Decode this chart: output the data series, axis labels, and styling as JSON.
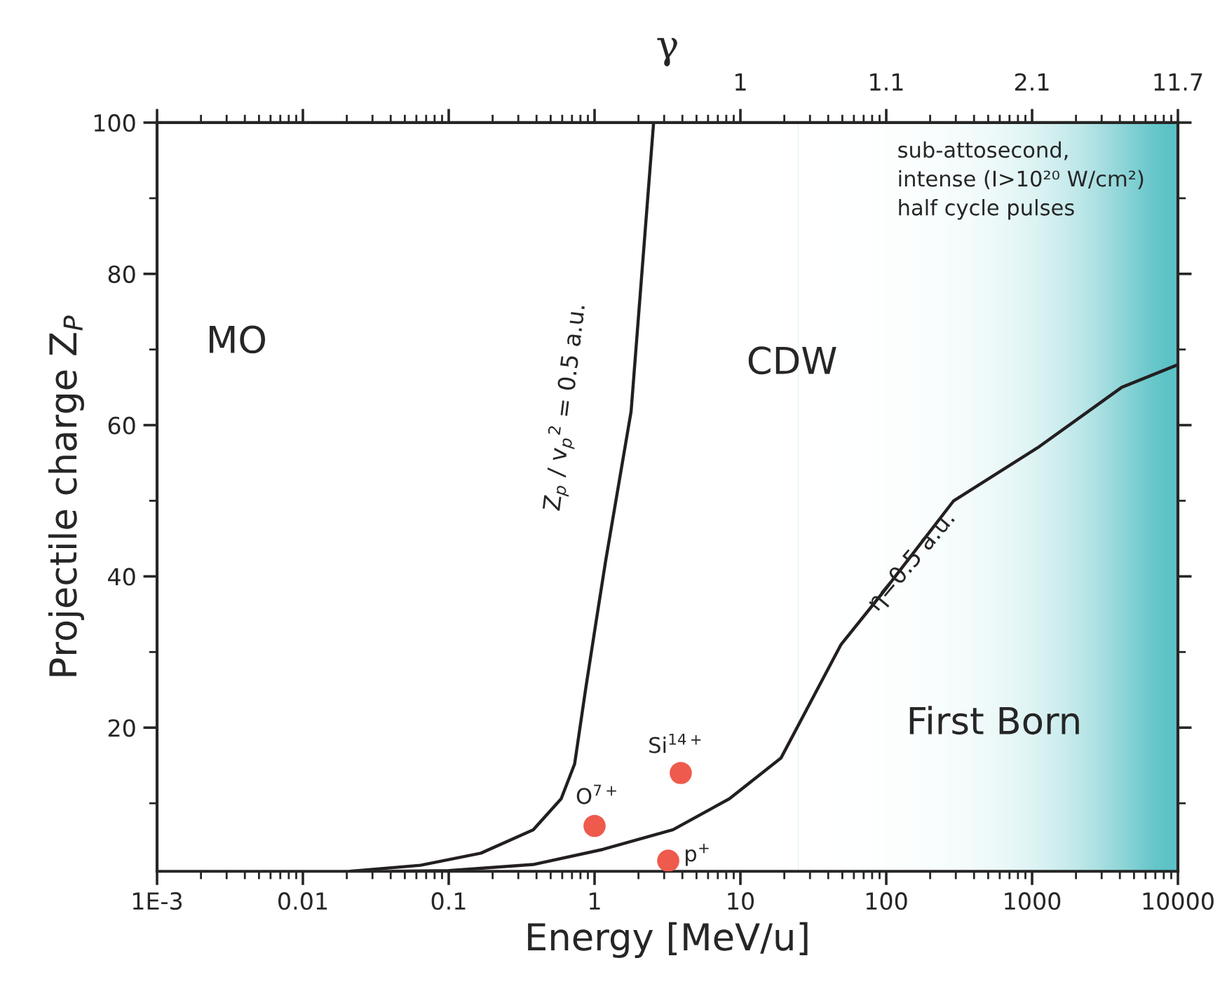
{
  "chart_data": {
    "type": "line",
    "xlabel": "Energy [MeV/u]",
    "ylabel": "Projectile charge Z$_{P}$",
    "x2label": "γ",
    "log": "x",
    "xlim": [
      0.001,
      10000
    ],
    "ylim": [
      1,
      100
    ],
    "xticks": [
      {
        "value": 0.001,
        "label": "1E-3"
      },
      0.01,
      0.1,
      1,
      10,
      100,
      1000,
      10000
    ],
    "yticks": [
      20,
      40,
      60,
      80,
      100
    ],
    "grid": false,
    "line_style": "solid",
    "series": [
      {
        "color": "#231f20",
        "x": [
          0.021,
          0.064,
          0.166,
          0.38,
          0.59,
          0.73,
          0.87,
          1.02,
          1.19,
          1.78,
          2.54
        ],
        "values": [
          1,
          1.8,
          3.4,
          6.5,
          10.6,
          15.2,
          25.2,
          33.8,
          42,
          61.8,
          100
        ]
      },
      {
        "color": "#231f20",
        "x": [
          0.041,
          0.1,
          0.38,
          1.14,
          3.45,
          8.4,
          19,
          49,
          96,
          290,
          1090,
          4120,
          10000
        ],
        "values": [
          1,
          1.1,
          1.9,
          3.9,
          6.5,
          10.6,
          16,
          31,
          38,
          50,
          57,
          65,
          68
        ]
      },
      {
        "type": "scatter",
        "color": "#ee5a4c",
        "marker": "circle",
        "x": [
          1.0,
          3.9,
          3.2
        ],
        "values": [
          7,
          14,
          2.4
        ]
      }
    ],
    "bands": [
      {
        "axis": "x",
        "from": 25,
        "to": 10000,
        "color": "#5bc2c6"
      }
    ],
    "annotations": [
      "MO",
      "CDW",
      "First Born",
      "Z$_{p}$ / v$_{p}$$^{2}$ = 0.5 a.u.",
      {
        "text": "η=0.5 a.u.",
        "x": 150,
        "y": 42
      },
      {
        "text": "O$^{7+}$",
        "x": 1.0,
        "y": 7
      },
      {
        "text": "Si$^{14+}$",
        "x": 3.9,
        "y": 14
      },
      {
        "text": "p$^{+}$",
        "x": 3.2,
        "y": 2.4
      },
      "sub-attosecond,\nintense (I>10²⁰ W/cm²)\nhalf cycle pulses",
      "1",
      "1.1",
      "2.1",
      "11.7"
    ]
  }
}
